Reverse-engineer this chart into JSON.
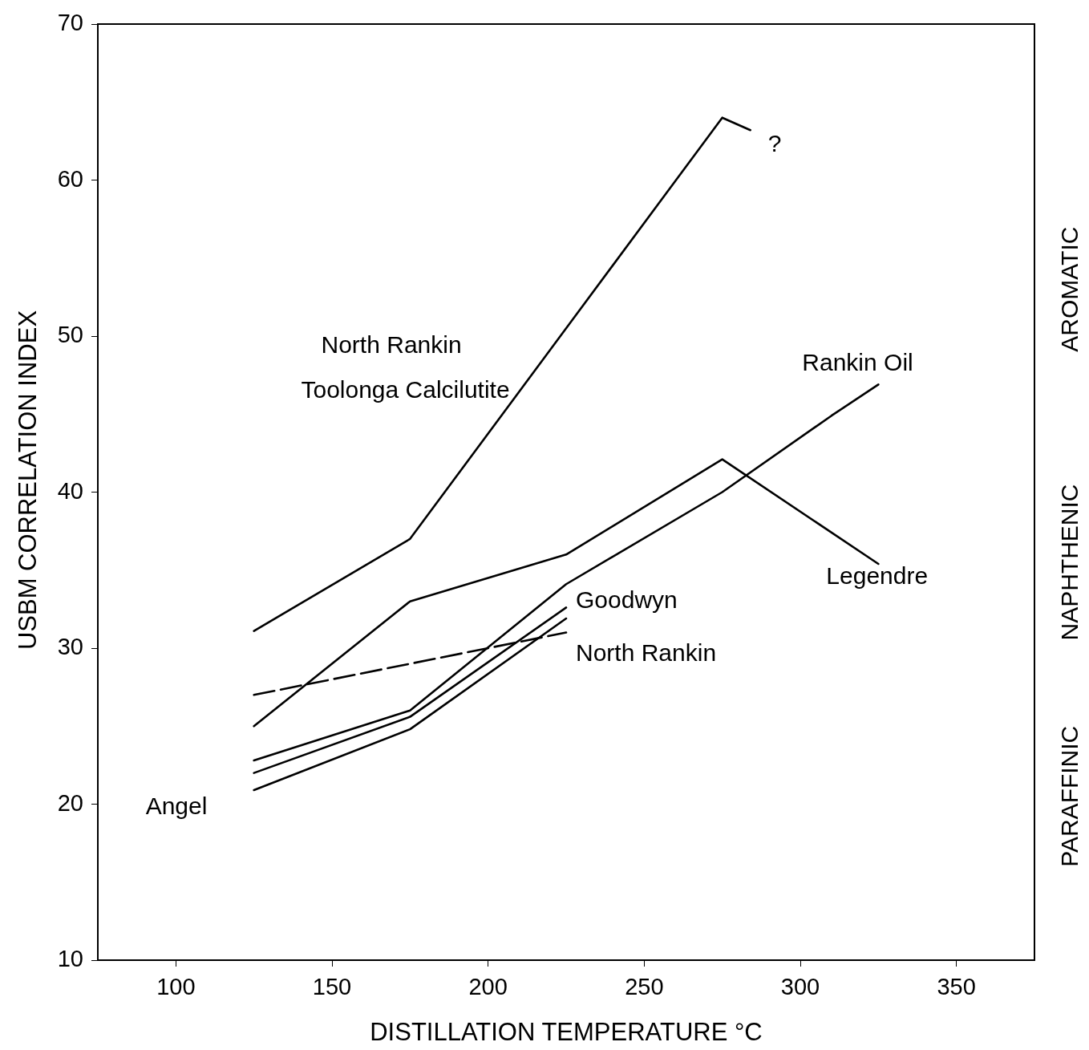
{
  "chart_data": {
    "type": "line",
    "xlabel": "DISTILLATION TEMPERATURE °C",
    "ylabel": "USBM CORRELATION INDEX",
    "xlim": [
      75,
      375
    ],
    "xticks": [
      100,
      150,
      200,
      250,
      300,
      350
    ],
    "ylim": [
      10,
      70
    ],
    "yticks": [
      10,
      20,
      30,
      40,
      50,
      60,
      70
    ],
    "grid": false,
    "legend": false,
    "marker": "none",
    "line_style": "solid",
    "series": [
      {
        "name": "North Rankin Toolonga Calcilutite",
        "color": "#000000",
        "x": [
          125,
          175,
          225,
          275,
          284
        ],
        "values": [
          31.1,
          37.0,
          50.5,
          64.0,
          63.2
        ]
      },
      {
        "name": "Legendre",
        "color": "#000000",
        "x": [
          125,
          175,
          225,
          275,
          325
        ],
        "values": [
          25.0,
          33.0,
          36.0,
          42.1,
          35.4
        ]
      },
      {
        "name": "Rankin Oil",
        "color": "#000000",
        "x": [
          125,
          175,
          225,
          275,
          310,
          325
        ],
        "values": [
          22.8,
          26.0,
          34.1,
          40.0,
          44.9,
          46.9
        ]
      },
      {
        "name": "Goodwyn",
        "color": "#000000",
        "x": [
          125,
          175,
          225
        ],
        "values": [
          22.0,
          25.6,
          32.6
        ]
      },
      {
        "name": "Angel",
        "color": "#000000",
        "x": [
          125,
          175,
          225
        ],
        "values": [
          20.9,
          24.8,
          31.9
        ]
      },
      {
        "name": "North Rankin",
        "color": "#000000",
        "line_style": "dashed",
        "x": [
          125,
          225
        ],
        "values": [
          27.0,
          31.0
        ]
      }
    ],
    "annotations": [
      "?",
      "AROMATIC",
      "NAPHTHENIC",
      "PARAFFINIC"
    ]
  }
}
